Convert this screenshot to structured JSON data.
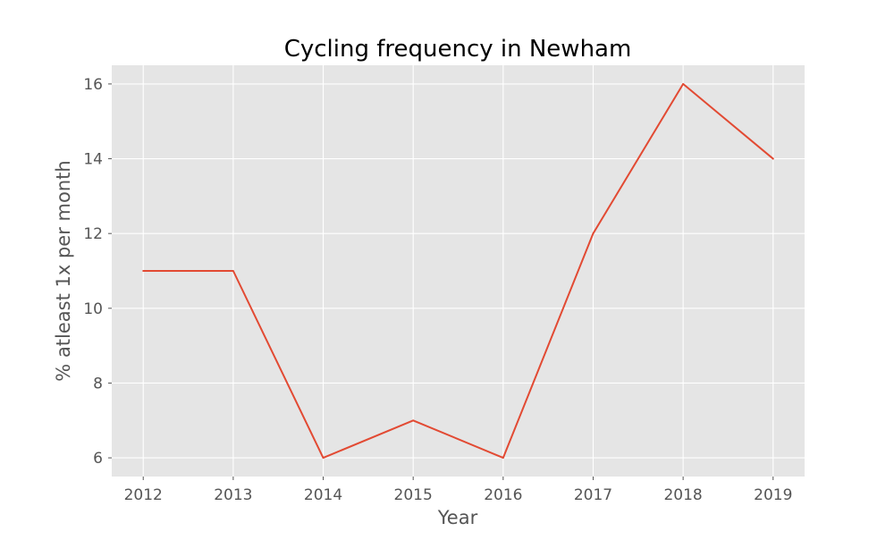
{
  "chart_data": {
    "type": "line",
    "title": "Cycling frequency in Newham",
    "xlabel": "Year",
    "ylabel": "% atleast 1x per month",
    "x": [
      2012,
      2013,
      2014,
      2015,
      2016,
      2017,
      2018,
      2019
    ],
    "series": [
      {
        "values": [
          11,
          11,
          6,
          7,
          6,
          12,
          16,
          14
        ],
        "color": "#E24A33"
      }
    ],
    "xticks": [
      "2012",
      "2013",
      "2014",
      "2015",
      "2016",
      "2017",
      "2018",
      "2019"
    ],
    "yticks": [
      6,
      8,
      10,
      12,
      14,
      16
    ],
    "xlim": [
      2011.65,
      2019.35
    ],
    "ylim": [
      5.5,
      16.5
    ],
    "grid": true,
    "colors": {
      "plot_background": "#E5E5E5",
      "grid": "#FFFFFF",
      "tick_text": "#555555",
      "title_text": "#000000"
    }
  }
}
